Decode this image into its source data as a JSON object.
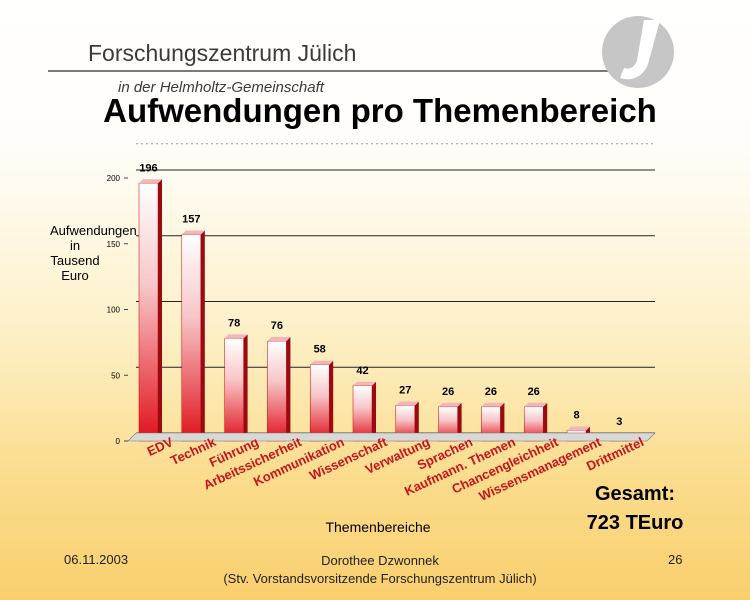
{
  "header": {
    "org_name": "Forschungszentrum Jülich",
    "org_sub": "in der Helmholtz-Gemeinschaft",
    "title": "Aufwendungen pro Themenbereich"
  },
  "chart_data": {
    "type": "bar",
    "title": "Aufwendungen pro Themenbereich",
    "ylabel": "Aufwendungen in Tausend Euro",
    "xlabel": "Themenbereiche",
    "ylim": [
      0,
      200
    ],
    "yticks": [
      0,
      50,
      100,
      150,
      200
    ],
    "categories": [
      "EDV",
      "Technik",
      "Führung",
      "Arbeitssicherheit",
      "Kommunikation",
      "Wissenschaft",
      "Verwaltung",
      "Sprachen",
      "Kaufmann. Themen",
      "Chancengleichheit",
      "Wissensmanagement",
      "Drittmittel"
    ],
    "values": [
      196,
      157,
      78,
      76,
      58,
      42,
      27,
      26,
      26,
      26,
      8,
      3
    ],
    "data_labels": [
      "196",
      "157",
      "78",
      "76",
      "58",
      "42",
      "27",
      "26",
      "26",
      "26",
      "8",
      "3"
    ],
    "colors": {
      "top": "#ffffff",
      "bottom": "#e0101a",
      "label": "#000000"
    }
  },
  "total": {
    "line1": "Gesamt:",
    "line2": "723 TEuro"
  },
  "footer": {
    "date": "06.11.2003",
    "author": "Dorothee Dzwonnek",
    "author_role": "(Stv. Vorstandsvorsitzende Forschungszentrum Jülich)",
    "page": "26"
  },
  "ylabel_lines": [
    "Aufwendungen",
    "in Tausend Euro"
  ]
}
